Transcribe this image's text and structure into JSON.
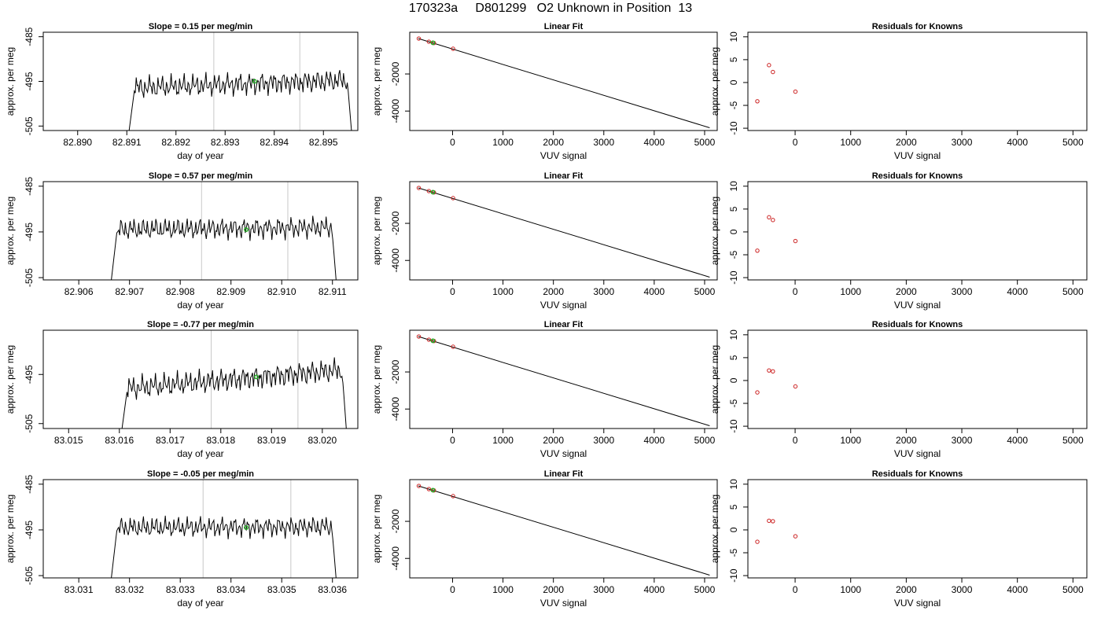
{
  "title": "170323a     D801299   O2 Unknown in Position  13",
  "colors": {
    "line": "#000000",
    "vline": "#c8c8c8",
    "known": "#cc2222",
    "unknown": "#22aa22",
    "frame": "#000000"
  },
  "chart_data": [
    {
      "type": "line",
      "title": "Slope =  0.15  per meg/min",
      "xlabel": "day of year",
      "ylabel": "approx. per meg",
      "xlim": [
        82.8893,
        82.8957
      ],
      "ylim": [
        -506,
        -484
      ],
      "xticks": [
        82.89,
        82.891,
        82.892,
        82.893,
        82.894,
        82.895
      ],
      "xtick_labels": [
        "82.890",
        "82.891",
        "82.892",
        "82.893",
        "82.894",
        "82.895"
      ],
      "yticks": [
        -485,
        -495,
        -505
      ],
      "vlines": [
        82.89277,
        82.89452
      ],
      "trace": {
        "x_start": 82.891,
        "x_end": 82.8956,
        "base": -496.5,
        "amp": 2.6,
        "drift": 1.8
      },
      "unknown_point": {
        "x": 82.8936,
        "y": -495
      }
    },
    {
      "type": "scatter",
      "title": "Linear Fit",
      "xlabel": "VUV signal",
      "ylabel": "approx. per meg",
      "xlim": [
        -850,
        5250
      ],
      "ylim": [
        -5050,
        250
      ],
      "xticks": [
        0,
        1000,
        2000,
        3000,
        4000,
        5000
      ],
      "yticks": [
        -2000,
        -4000
      ],
      "fit_line": {
        "x": [
          -680,
          5100
        ],
        "y": [
          -90,
          -4900
        ]
      },
      "known_points": [
        {
          "x": -670,
          "y": -90
        },
        {
          "x": -470,
          "y": -260
        },
        {
          "x": -370,
          "y": -330
        },
        {
          "x": 10,
          "y": -640
        }
      ],
      "unknown_points": [
        {
          "x": -390,
          "y": -320
        }
      ]
    },
    {
      "type": "scatter",
      "title": "Residuals for Knowns",
      "xlabel": "VUV signal",
      "ylabel": "approx. per meg",
      "xlim": [
        -850,
        5250
      ],
      "ylim": [
        -10.5,
        11
      ],
      "xticks": [
        0,
        1000,
        2000,
        3000,
        4000,
        5000
      ],
      "yticks": [
        10,
        5,
        0,
        -5,
        -10
      ],
      "points": [
        {
          "x": -680,
          "y": -4.1
        },
        {
          "x": -470,
          "y": 3.8
        },
        {
          "x": -400,
          "y": 2.3
        },
        {
          "x": 5,
          "y": -2.0
        }
      ]
    },
    {
      "type": "line",
      "title": "Slope =  0.57  per meg/min",
      "xlabel": "day of year",
      "ylabel": "approx. per meg",
      "xlim": [
        82.9053,
        82.9115
      ],
      "ylim": [
        -505.5,
        -484
      ],
      "xticks": [
        82.906,
        82.907,
        82.908,
        82.909,
        82.91,
        82.911
      ],
      "xtick_labels": [
        "82.906",
        "82.907",
        "82.908",
        "82.909",
        "82.910",
        "82.911"
      ],
      "yticks": [
        -485,
        -495,
        -505
      ],
      "vlines": [
        82.90842,
        82.91012
      ],
      "trace": {
        "x_start": 82.9066,
        "x_end": 82.9111,
        "base": -494.5,
        "amp": 2.4,
        "drift": 0.5
      },
      "unknown_point": {
        "x": 82.9093,
        "y": -494.5
      }
    },
    {
      "type": "scatter",
      "title": "Linear Fit",
      "xlabel": "VUV signal",
      "ylabel": "approx. per meg",
      "xlim": [
        -850,
        5250
      ],
      "ylim": [
        -5050,
        250
      ],
      "xticks": [
        0,
        1000,
        2000,
        3000,
        4000,
        5000
      ],
      "yticks": [
        -2000,
        -4000
      ],
      "fit_line": {
        "x": [
          -680,
          5100
        ],
        "y": [
          -90,
          -4900
        ]
      },
      "known_points": [
        {
          "x": -670,
          "y": -90
        },
        {
          "x": -470,
          "y": -260
        },
        {
          "x": -370,
          "y": -330
        },
        {
          "x": 10,
          "y": -640
        }
      ],
      "unknown_points": [
        {
          "x": -390,
          "y": -320
        }
      ]
    },
    {
      "type": "scatter",
      "title": "Residuals for Knowns",
      "xlabel": "VUV signal",
      "ylabel": "approx. per meg",
      "xlim": [
        -850,
        5250
      ],
      "ylim": [
        -10.5,
        11
      ],
      "xticks": [
        0,
        1000,
        2000,
        3000,
        4000,
        5000
      ],
      "yticks": [
        10,
        5,
        0,
        -5,
        -10
      ],
      "points": [
        {
          "x": -680,
          "y": -4.1
        },
        {
          "x": -470,
          "y": 3.2
        },
        {
          "x": -400,
          "y": 2.6
        },
        {
          "x": 5,
          "y": -2.0
        }
      ]
    },
    {
      "type": "line",
      "title": "Slope =  -0.77  per meg/min",
      "xlabel": "day of year",
      "ylabel": "approx. per meg",
      "xlim": [
        83.0145,
        83.0207
      ],
      "ylim": [
        -506,
        -486
      ],
      "xticks": [
        83.015,
        83.016,
        83.017,
        83.018,
        83.019,
        83.02
      ],
      "xtick_labels": [
        "83.015",
        "83.016",
        "83.017",
        "83.018",
        "83.019",
        "83.020"
      ],
      "yticks": [
        -495,
        -505
      ],
      "vlines": [
        83.01781,
        83.01952
      ],
      "trace": {
        "x_start": 83.016,
        "x_end": 83.0205,
        "base": -498,
        "amp": 2.5,
        "drift": 4.0
      },
      "unknown_point": {
        "x": 83.0187,
        "y": -495.5
      }
    },
    {
      "type": "scatter",
      "title": "Linear Fit",
      "xlabel": "VUV signal",
      "ylabel": "approx. per meg",
      "xlim": [
        -850,
        5250
      ],
      "ylim": [
        -5050,
        250
      ],
      "xticks": [
        0,
        1000,
        2000,
        3000,
        4000,
        5000
      ],
      "yticks": [
        -2000,
        -4000
      ],
      "fit_line": {
        "x": [
          -680,
          5100
        ],
        "y": [
          -90,
          -4900
        ]
      },
      "known_points": [
        {
          "x": -670,
          "y": -90
        },
        {
          "x": -470,
          "y": -260
        },
        {
          "x": -370,
          "y": -330
        },
        {
          "x": 10,
          "y": -640
        }
      ],
      "unknown_points": [
        {
          "x": -390,
          "y": -320
        }
      ]
    },
    {
      "type": "scatter",
      "title": "Residuals for Knowns",
      "xlabel": "VUV signal",
      "ylabel": "approx. per meg",
      "xlim": [
        -850,
        5250
      ],
      "ylim": [
        -10.5,
        11
      ],
      "xticks": [
        0,
        1000,
        2000,
        3000,
        4000,
        5000
      ],
      "yticks": [
        10,
        5,
        0,
        -5,
        -10
      ],
      "points": [
        {
          "x": -680,
          "y": -2.6
        },
        {
          "x": -470,
          "y": 2.2
        },
        {
          "x": -400,
          "y": 2.0
        },
        {
          "x": 5,
          "y": -1.3
        }
      ]
    },
    {
      "type": "line",
      "title": "Slope =  -0.05  per meg/min",
      "xlabel": "day of year",
      "ylabel": "approx. per meg",
      "xlim": [
        83.0303,
        83.0365
      ],
      "ylim": [
        -505.5,
        -484
      ],
      "xticks": [
        83.031,
        83.032,
        83.033,
        83.034,
        83.035,
        83.036
      ],
      "xtick_labels": [
        "83.031",
        "83.032",
        "83.033",
        "83.034",
        "83.035",
        "83.036"
      ],
      "yticks": [
        -485,
        -495,
        -505
      ],
      "vlines": [
        83.03345,
        83.03518
      ],
      "trace": {
        "x_start": 83.0316,
        "x_end": 83.0361,
        "base": -494.5,
        "amp": 2.3,
        "drift": 0.2
      },
      "unknown_point": {
        "x": 83.0343,
        "y": -494.5
      }
    },
    {
      "type": "scatter",
      "title": "Linear Fit",
      "xlabel": "VUV signal",
      "ylabel": "approx. per meg",
      "xlim": [
        -850,
        5250
      ],
      "ylim": [
        -5050,
        250
      ],
      "xticks": [
        0,
        1000,
        2000,
        3000,
        4000,
        5000
      ],
      "yticks": [
        -2000,
        -4000
      ],
      "fit_line": {
        "x": [
          -680,
          5100
        ],
        "y": [
          -90,
          -4900
        ]
      },
      "known_points": [
        {
          "x": -670,
          "y": -90
        },
        {
          "x": -470,
          "y": -260
        },
        {
          "x": -370,
          "y": -330
        },
        {
          "x": 10,
          "y": -640
        }
      ],
      "unknown_points": [
        {
          "x": -390,
          "y": -320
        }
      ]
    },
    {
      "type": "scatter",
      "title": "Residuals for Knowns",
      "xlabel": "VUV signal",
      "ylabel": "approx. per meg",
      "xlim": [
        -850,
        5250
      ],
      "ylim": [
        -10.5,
        11
      ],
      "xticks": [
        0,
        1000,
        2000,
        3000,
        4000,
        5000
      ],
      "yticks": [
        10,
        5,
        0,
        -5,
        -10
      ],
      "points": [
        {
          "x": -680,
          "y": -2.6
        },
        {
          "x": -470,
          "y": 2.0
        },
        {
          "x": -400,
          "y": 1.9
        },
        {
          "x": 5,
          "y": -1.4
        }
      ]
    }
  ]
}
